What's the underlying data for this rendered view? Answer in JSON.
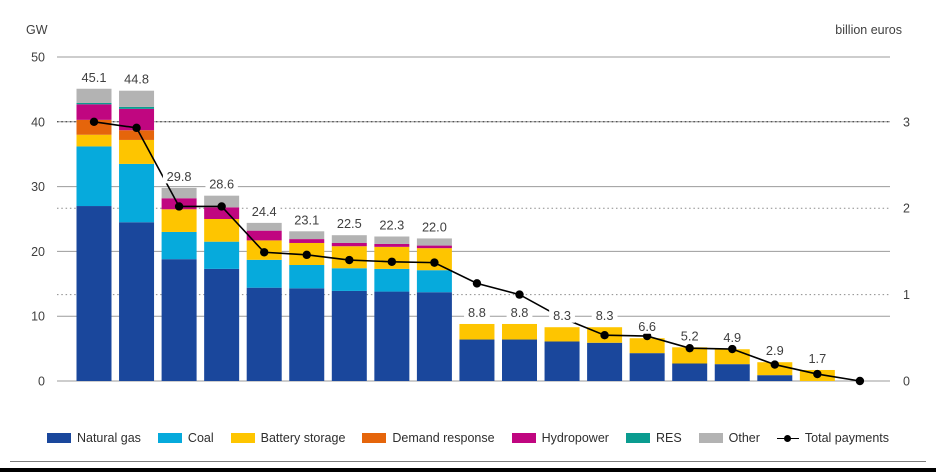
{
  "chart_data": {
    "type": "bar",
    "subtype": "stacked-bar-with-line",
    "title": "",
    "left_axis": {
      "title": "GW",
      "ticks": [
        0,
        10,
        20,
        30,
        40,
        50
      ],
      "range": [
        0,
        50
      ]
    },
    "right_axis": {
      "title": "billion euros",
      "ticks": [
        0,
        1,
        2,
        3
      ],
      "range": [
        0,
        3
      ],
      "gw_equivalent_of_max": 40
    },
    "x_labels": [],
    "grid": {
      "solid_ticks_gw": [
        0,
        10,
        20,
        30,
        40,
        50
      ],
      "dotted_ticks_euro": [
        1,
        2,
        3
      ]
    },
    "bar_totals": [
      45.1,
      44.8,
      29.8,
      28.6,
      24.4,
      23.1,
      22.5,
      22.3,
      22.0,
      8.8,
      8.8,
      8.3,
      8.3,
      6.6,
      5.2,
      4.9,
      2.9,
      1.7
    ],
    "series": [
      {
        "name": "Natural gas",
        "color": "#1a479c",
        "values": [
          27.0,
          24.5,
          18.8,
          17.3,
          14.4,
          14.3,
          13.9,
          13.8,
          13.7,
          6.4,
          6.4,
          6.1,
          5.9,
          4.3,
          2.7,
          2.6,
          0.9,
          0
        ]
      },
      {
        "name": "Coal",
        "color": "#06aadc",
        "values": [
          9.2,
          9.0,
          4.2,
          4.2,
          4.3,
          3.6,
          3.5,
          3.5,
          3.4,
          0,
          0,
          0,
          0,
          0,
          0,
          0,
          0,
          0
        ]
      },
      {
        "name": "Battery storage",
        "color": "#fec500",
        "values": [
          1.8,
          3.7,
          3.5,
          3.5,
          3.0,
          3.4,
          3.4,
          3.4,
          3.4,
          2.4,
          2.4,
          2.2,
          2.4,
          2.3,
          2.5,
          2.3,
          2.0,
          1.7
        ]
      },
      {
        "name": "Demand response",
        "color": "#e5650b",
        "values": [
          2.3,
          1.5,
          0,
          0,
          0,
          0,
          0,
          0,
          0,
          0,
          0,
          0,
          0,
          0,
          0,
          0,
          0,
          0
        ]
      },
      {
        "name": "Hydropower",
        "color": "#c00680",
        "values": [
          2.4,
          3.3,
          1.7,
          1.8,
          1.5,
          0.6,
          0.5,
          0.45,
          0.4,
          0,
          0,
          0,
          0,
          0,
          0,
          0,
          0,
          0
        ]
      },
      {
        "name": "RES",
        "color": "#0a9c90",
        "values": [
          0.2,
          0.3,
          0,
          0,
          0,
          0,
          0,
          0,
          0,
          0,
          0,
          0,
          0,
          0,
          0,
          0,
          0,
          0
        ]
      },
      {
        "name": "Other",
        "color": "#b3b3b3",
        "values": [
          2.2,
          2.5,
          1.6,
          1.8,
          1.2,
          1.2,
          1.2,
          1.15,
          1.1,
          0,
          0,
          0,
          0,
          0,
          0,
          0,
          0,
          0
        ]
      }
    ],
    "line_series": {
      "name": "Total payments",
      "color": "#000000",
      "axis": "right",
      "values": [
        3.0,
        2.93,
        2.02,
        2.02,
        1.49,
        1.46,
        1.4,
        1.38,
        1.37,
        1.13,
        1.0,
        0.73,
        0.53,
        0.52,
        0.38,
        0.37,
        0.19,
        0.08,
        0.0
      ]
    },
    "legend_position": "bottom"
  },
  "text_colors": {
    "labels": "#3f3f3f",
    "grid_solid": "#9b9b9b",
    "grid_dotted": "#8c8c8c",
    "grid_dotted_dark": "#2b2b2b"
  }
}
